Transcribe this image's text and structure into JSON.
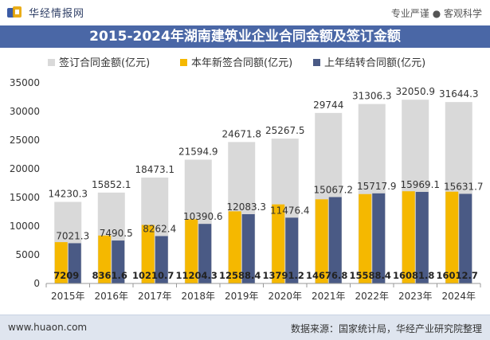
{
  "header": {
    "brand": "华经情报网",
    "slogan": "专业严谨 ● 客观科学"
  },
  "footer": {
    "website": "www.huaon.com",
    "source": "数据来源：国家统计局，华经产业研究院整理"
  },
  "colors": {
    "title_band": "#4a67a6",
    "series_total": "#d9d9d9",
    "series_new": "#f5b800",
    "series_carry": "#4a5a85"
  },
  "chart_data": {
    "type": "bar",
    "title": "2015-2024年湖南建筑业企业合同金额及签订金额",
    "categories": [
      "2015年",
      "2016年",
      "2017年",
      "2018年",
      "2019年",
      "2020年",
      "2021年",
      "2022年",
      "2023年",
      "2024年"
    ],
    "series": [
      {
        "name": "签订合同金额(亿元)",
        "values": [
          14230.3,
          15852.1,
          18473.1,
          21594.9,
          24671.8,
          25267.5,
          29744,
          31306.3,
          32050.9,
          31644.3
        ],
        "labels": [
          "14230.3",
          "15852.1",
          "18473.1",
          "21594.9",
          "24671.8",
          "25267.5",
          "29744",
          "31306.3",
          "32050.9",
          "31644.3"
        ],
        "color": "#d9d9d9"
      },
      {
        "name": "本年新签合同额(亿元)",
        "values": [
          7209,
          8361.6,
          10210.7,
          11204.3,
          12588.4,
          13791.2,
          14676.8,
          15588.4,
          16081.8,
          16012.7
        ],
        "labels": [
          "7209",
          "8361.6",
          "10210.7",
          "11204.3",
          "12588.4",
          "13791.2",
          "14676.8",
          "15588.4",
          "16081.8",
          "16012.7"
        ],
        "color": "#f5b800"
      },
      {
        "name": "上年结转合同额(亿元)",
        "values": [
          7021.3,
          7490.5,
          8262.4,
          10390.6,
          12083.3,
          11476.4,
          15067.2,
          15717.9,
          15969.1,
          15631.7
        ],
        "labels": [
          "7021.3",
          "7490.5",
          "8262.4",
          "10390.6",
          "12083.3",
          "11476.4",
          "15067.2",
          "15717.9",
          "15969.1",
          "15631.7"
        ],
        "color": "#4a5a85"
      }
    ],
    "yticks": [
      "0",
      "5000",
      "10000",
      "15000",
      "20000",
      "25000",
      "30000",
      "35000"
    ],
    "ylim": [
      0,
      35000
    ],
    "legend_position": "top-left",
    "grid": false
  }
}
